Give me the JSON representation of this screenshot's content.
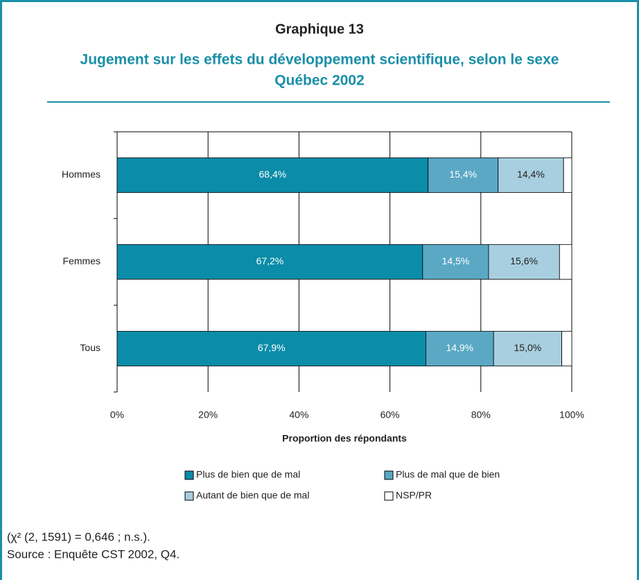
{
  "chart_data": {
    "type": "stacked_bar_horizontal",
    "heading": "Graphique 13",
    "title": "Jugement sur les effets du développement scientifique, selon le sexe",
    "subtitle": "Québec 2002",
    "categories": [
      "Hommes",
      "Femmes",
      "Tous"
    ],
    "series": [
      {
        "name": "Plus de bien que de mal",
        "color": "#0b8ca8",
        "values": [
          68.4,
          67.2,
          67.9
        ],
        "value_labels": [
          "68,4%",
          "67,2%",
          "67,9%"
        ]
      },
      {
        "name": "Plus de mal que de bien",
        "color": "#5aa8c4",
        "values": [
          15.4,
          14.5,
          14.9
        ],
        "value_labels": [
          "15,4%",
          "14,5%",
          "14,9%"
        ]
      },
      {
        "name": "Autant de bien que de mal",
        "color": "#a8cfdf",
        "values": [
          14.4,
          15.6,
          15.0
        ],
        "value_labels": [
          "14,4%",
          "15,6%",
          "15,0%"
        ]
      },
      {
        "name": "NSP/PR",
        "color": "#ffffff",
        "values": [
          1.8,
          2.7,
          2.2
        ]
      }
    ],
    "xlim": [
      0,
      100
    ],
    "xticks": [
      {
        "value": 0,
        "label": "0%"
      },
      {
        "value": 20,
        "label": "20%"
      },
      {
        "value": 40,
        "label": "40%"
      },
      {
        "value": 60,
        "label": "60%"
      },
      {
        "value": 80,
        "label": "80%"
      },
      {
        "value": 100,
        "label": "100%"
      }
    ],
    "xlabel": "Proportion des répondants",
    "grid": true,
    "notes": [
      "(χ² (2, 1591) = 0,646 ; n.s.).",
      "Source : Enquête CST 2002, Q4."
    ]
  }
}
